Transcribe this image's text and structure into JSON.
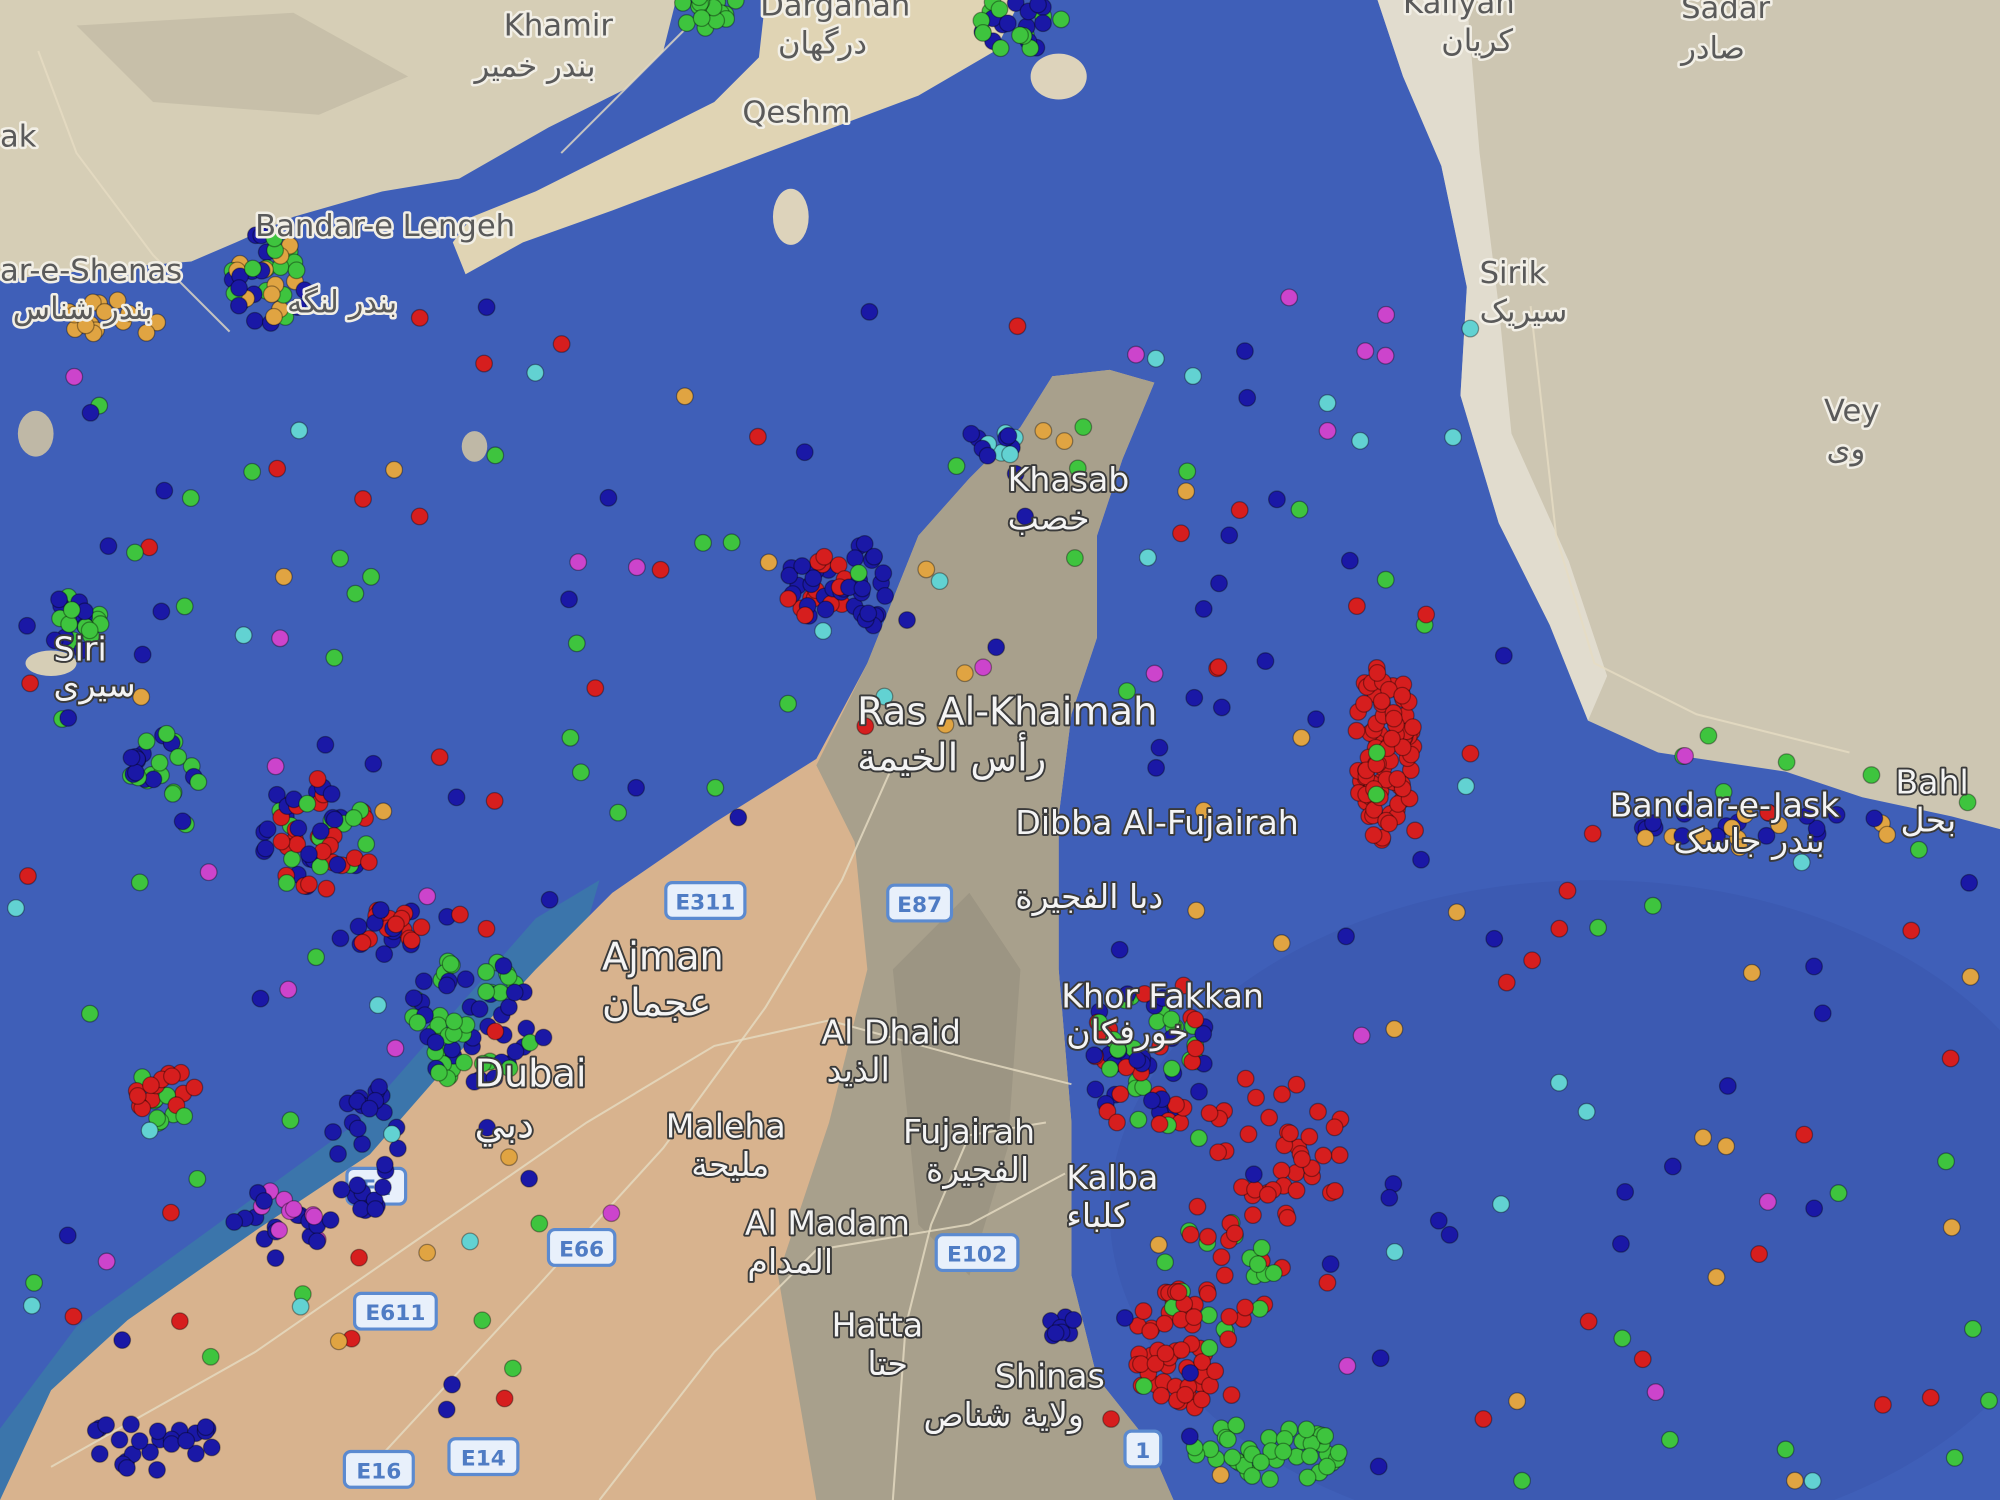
{
  "map": {
    "type": "satellite map with vessel positions",
    "colors": {
      "sea": "#3f5fb8",
      "sea_shallow": "#4a78b0",
      "land_iran": "#d6ceb6",
      "land_uae_desert": "#d8b38e",
      "land_mountains": "#a8a08c",
      "vessel_blue": "#1a18a6",
      "vessel_green": "#3ec43e",
      "vessel_red": "#d61e1e",
      "vessel_orange": "#e0a442",
      "vessel_cyan": "#62d2d2",
      "vessel_magenta": "#cc44cc"
    },
    "places": [
      {
        "name": "Khamir",
        "arabic": "بندر خمیر"
      },
      {
        "name": "Qeshm",
        "arabic": ""
      },
      {
        "name": "Bandar-e Lengeh",
        "arabic": "بندر لنگه"
      },
      {
        "name": "ar-e-Shenas",
        "arabic": "بندر شناس"
      },
      {
        "name": "Dargahan",
        "arabic": "درگهان"
      },
      {
        "name": "Kaliyan",
        "arabic": "کریان"
      },
      {
        "name": "Sadar",
        "arabic": "صادر"
      },
      {
        "name": "Sirik",
        "arabic": "سیریک"
      },
      {
        "name": "Vey",
        "arabic": "وی"
      },
      {
        "name": "Siri",
        "arabic": "سیری"
      },
      {
        "name": "Khasab",
        "arabic": "خصب"
      },
      {
        "name": "Ras Al-Khaimah",
        "arabic": "رأس الخيمة"
      },
      {
        "name": "Dibba Al-Fujairah",
        "arabic": "دبا الفجيرة"
      },
      {
        "name": "Bandar-e-Jask",
        "arabic": "بندر جاسک"
      },
      {
        "name": "Bahl",
        "arabic": "بحل"
      },
      {
        "name": "Ajman",
        "arabic": "عجمان"
      },
      {
        "name": "Khor Fakkan",
        "arabic": "خورفكان"
      },
      {
        "name": "Al Dhaid",
        "arabic": "الذيد"
      },
      {
        "name": "Dubai",
        "arabic": "دبي"
      },
      {
        "name": "Maleha",
        "arabic": "مليحة"
      },
      {
        "name": "Fujairah",
        "arabic": "الفجيرة"
      },
      {
        "name": "Kalba",
        "arabic": "كلباء"
      },
      {
        "name": "Al Madam",
        "arabic": "المدام"
      },
      {
        "name": "Hatta",
        "arabic": "حتا"
      },
      {
        "name": "Shinas",
        "arabic": "ولاية شناص"
      },
      {
        "name": "ak",
        "arabic": ""
      }
    ],
    "road_shields": [
      "E311",
      "E87",
      "E66",
      "E102",
      "E611",
      "E16",
      "E14",
      "E1",
      "1"
    ]
  }
}
